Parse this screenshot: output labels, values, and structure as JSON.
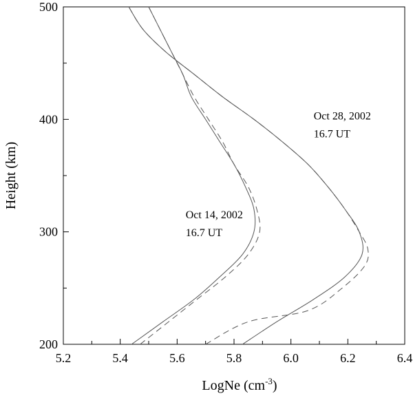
{
  "chart_data": {
    "type": "line",
    "xlabel": "LogNe (cm",
    "xlabel_sup": "-3",
    "xlabel_tail": ")",
    "ylabel": "Height (km)",
    "xlim": [
      5.2,
      6.4
    ],
    "ylim": [
      200,
      500
    ],
    "x_ticks": [
      "5.2",
      "5.4",
      "5.6",
      "5.8",
      "6.0",
      "6.2",
      "6.4"
    ],
    "y_ticks": [
      "200",
      "300",
      "400",
      "500"
    ],
    "grid": false,
    "series": [
      {
        "style": "solid",
        "points": [
          [
            5.44,
            200
          ],
          [
            5.55,
            220
          ],
          [
            5.66,
            240
          ],
          [
            5.75,
            260
          ],
          [
            5.83,
            280
          ],
          [
            5.87,
            300
          ],
          [
            5.87,
            320
          ],
          [
            5.84,
            340
          ],
          [
            5.8,
            360
          ],
          [
            5.75,
            380
          ],
          [
            5.7,
            400
          ],
          [
            5.65,
            420
          ],
          [
            5.62,
            440
          ],
          [
            5.58,
            460
          ],
          [
            5.54,
            480
          ],
          [
            5.5,
            500
          ]
        ]
      },
      {
        "style": "dashed",
        "points": [
          [
            5.47,
            200
          ],
          [
            5.57,
            220
          ],
          [
            5.67,
            240
          ],
          [
            5.77,
            260
          ],
          [
            5.85,
            280
          ],
          [
            5.89,
            300
          ],
          [
            5.88,
            320
          ],
          [
            5.85,
            340
          ],
          [
            5.8,
            360
          ],
          [
            5.76,
            380
          ],
          [
            5.71,
            400
          ],
          [
            5.66,
            420
          ],
          [
            5.62,
            440
          ],
          [
            5.58,
            460
          ],
          [
            5.54,
            480
          ],
          [
            5.5,
            500
          ]
        ]
      },
      {
        "style": "solid",
        "points": [
          [
            5.83,
            200
          ],
          [
            5.95,
            220
          ],
          [
            6.08,
            240
          ],
          [
            6.19,
            260
          ],
          [
            6.25,
            280
          ],
          [
            6.24,
            300
          ],
          [
            6.19,
            320
          ],
          [
            6.13,
            340
          ],
          [
            6.06,
            360
          ],
          [
            5.97,
            380
          ],
          [
            5.87,
            400
          ],
          [
            5.76,
            420
          ],
          [
            5.66,
            440
          ],
          [
            5.56,
            460
          ],
          [
            5.48,
            480
          ],
          [
            5.43,
            500
          ]
        ]
      },
      {
        "style": "dashed",
        "points": [
          [
            5.7,
            200
          ],
          [
            5.85,
            220
          ],
          [
            6.06,
            230
          ],
          [
            6.18,
            250
          ],
          [
            6.26,
            270
          ],
          [
            6.27,
            285
          ],
          [
            6.24,
            300
          ],
          [
            6.19,
            320
          ],
          [
            6.13,
            340
          ],
          [
            6.06,
            360
          ],
          [
            5.97,
            380
          ],
          [
            5.87,
            400
          ],
          [
            5.76,
            420
          ],
          [
            5.66,
            440
          ],
          [
            5.56,
            460
          ],
          [
            5.48,
            480
          ],
          [
            5.43,
            500
          ]
        ]
      }
    ],
    "annotations": [
      {
        "line1": "Oct 14, 2002",
        "line2": "16.7 UT",
        "x": 5.63,
        "y": 312
      },
      {
        "line1": "Oct 28, 2002",
        "line2": "16.7 UT",
        "x": 6.08,
        "y": 400
      }
    ]
  }
}
